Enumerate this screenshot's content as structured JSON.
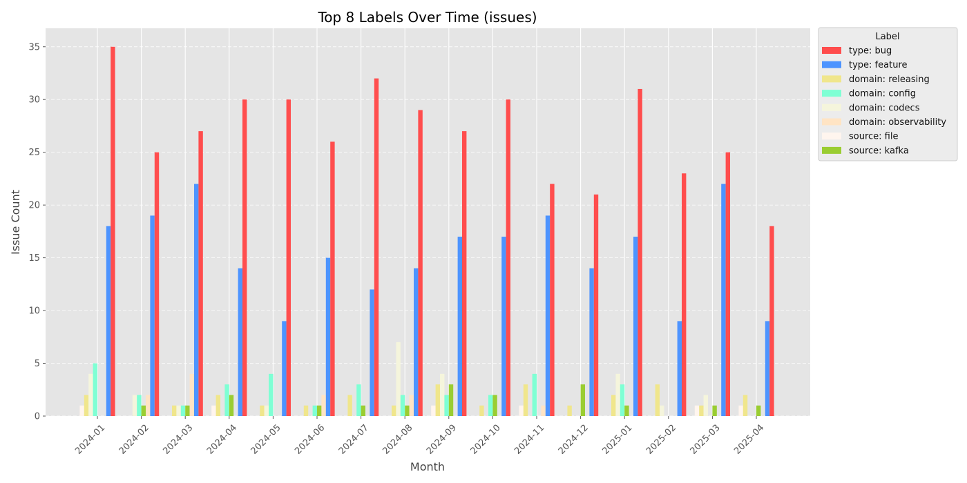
{
  "chart_data": {
    "type": "bar",
    "title": "Top 8 Labels Over Time (issues)",
    "xlabel": "Month",
    "ylabel": "Issue Count",
    "ylim": [
      0,
      36.75
    ],
    "yticks": [
      0,
      5,
      10,
      15,
      20,
      25,
      30,
      35
    ],
    "grid": true,
    "legend": {
      "title": "Label",
      "placement": "outside-top-right"
    },
    "categories": [
      "2024-01",
      "2024-02",
      "2024-03",
      "2024-04",
      "2024-05",
      "2024-06",
      "2024-07",
      "2024-08",
      "2024-09",
      "2024-10",
      "2024-11",
      "2024-12",
      "2025-01",
      "2025-02",
      "2025-03",
      "2025-04"
    ],
    "series": [
      {
        "name": "source: file",
        "color": "#fff5ee",
        "values": [
          1,
          0,
          0,
          1,
          0,
          0,
          0,
          0,
          1,
          0,
          1,
          0,
          0,
          0,
          1,
          1
        ]
      },
      {
        "name": "domain: releasing",
        "color": "#f0e68c",
        "values": [
          2,
          0,
          1,
          2,
          1,
          1,
          2,
          1,
          3,
          1,
          3,
          1,
          2,
          3,
          1,
          2
        ]
      },
      {
        "name": "domain: codecs",
        "color": "#f5f5dc",
        "values": [
          4,
          2,
          1,
          0,
          1,
          0,
          0,
          7,
          4,
          0,
          0,
          0,
          4,
          1,
          2,
          0
        ]
      },
      {
        "name": "domain: config",
        "color": "#7fffd4",
        "values": [
          5,
          2,
          1,
          3,
          4,
          1,
          3,
          2,
          2,
          2,
          4,
          0,
          3,
          0,
          0,
          0
        ]
      },
      {
        "name": "source: kafka",
        "color": "#9acd32",
        "values": [
          0,
          1,
          1,
          2,
          0,
          1,
          1,
          1,
          3,
          2,
          0,
          3,
          1,
          0,
          1,
          1
        ]
      },
      {
        "name": "domain: observability",
        "color": "#ffe4c4",
        "values": [
          0,
          2,
          4,
          0,
          0,
          2,
          0,
          2,
          0,
          0,
          1,
          0,
          0,
          0,
          0,
          0
        ]
      },
      {
        "name": "type: feature",
        "color": "#4d94ff",
        "values": [
          18,
          19,
          22,
          14,
          9,
          15,
          12,
          14,
          17,
          17,
          19,
          14,
          17,
          9,
          22,
          9
        ]
      },
      {
        "name": "type: bug",
        "color": "#ff4d4d",
        "values": [
          35,
          25,
          27,
          30,
          30,
          26,
          32,
          29,
          27,
          30,
          22,
          21,
          31,
          23,
          25,
          18
        ]
      }
    ],
    "legend_order": [
      "type: bug",
      "type: feature",
      "domain: releasing",
      "domain: config",
      "domain: codecs",
      "domain: observability",
      "source: file",
      "source: kafka"
    ]
  }
}
